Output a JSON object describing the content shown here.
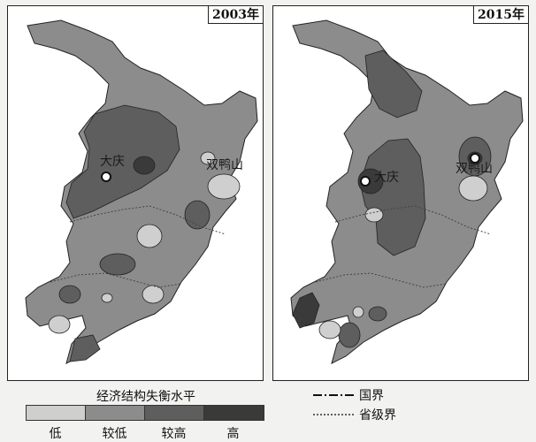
{
  "colors": {
    "low": "#cfcfcf",
    "lower": "#8c8c8c",
    "higher": "#5e5e5e",
    "high": "#3a3a3a",
    "border": "#222222"
  },
  "maps": [
    {
      "year": "2003年",
      "cities": [
        "大庆",
        "双鸭山"
      ]
    },
    {
      "year": "2015年",
      "cities": [
        "大庆",
        "双鸭山"
      ]
    }
  ],
  "legend": {
    "title": "经济结构失衡水平",
    "levels": [
      "低",
      "较低",
      "较高",
      "高"
    ]
  },
  "boundaries": {
    "national": "国界",
    "provincial": "省级界"
  }
}
